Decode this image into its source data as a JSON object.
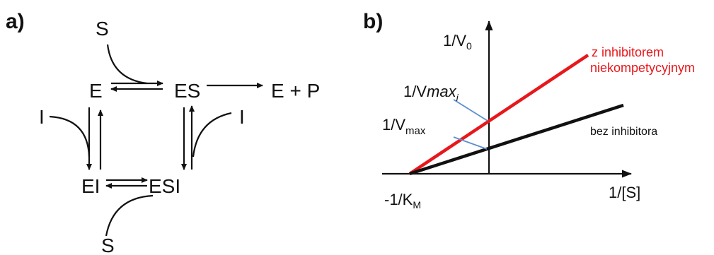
{
  "panel_a": {
    "label": "a)",
    "species": {
      "s_top": "S",
      "e": "E",
      "es": "ES",
      "products": "E + P",
      "i_left": "I",
      "i_right": "I",
      "ei": "EI",
      "esi": "ESI",
      "s_bottom": "S"
    }
  },
  "panel_b": {
    "label": "b)",
    "y_axis_label": "1/V",
    "y_axis_label_sub": "0",
    "x_axis_label": "1/[S]",
    "x_intercept_label": "-1/K",
    "x_intercept_label_sub": "M",
    "vmax_i_label": "1/V",
    "vmax_i_label_sub": "max",
    "vmax_i_label_subsub": "i",
    "vmax_label": "1/V",
    "vmax_label_sub": "max",
    "line_inhibited_label_1": "z inhibitorem",
    "line_inhibited_label_2": "niekompetycyjnym",
    "line_uninhibited_label": "bez inhibitora"
  },
  "colors": {
    "inhibited_line": "#e8171b",
    "uninhibited_line": "#111111",
    "pointer_line": "#5b8fd0"
  }
}
